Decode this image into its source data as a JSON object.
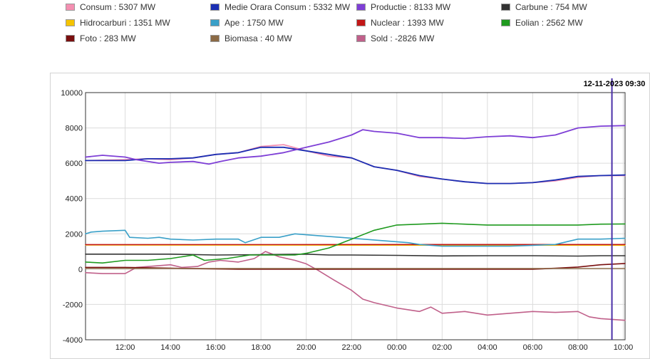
{
  "legend": [
    {
      "label": "Consum : 5307 MW",
      "color": "#f48fb1"
    },
    {
      "label": "Medie Orara Consum : 5332 MW",
      "color": "#1b2fb3"
    },
    {
      "label": "Productie : 8133 MW",
      "color": "#7e3fd6"
    },
    {
      "label": "Carbune : 754 MW",
      "color": "#333333"
    },
    {
      "label": "Hidrocarburi : 1351 MW",
      "color": "#f5c400"
    },
    {
      "label": "Ape : 1750 MW",
      "color": "#3aa0c8"
    },
    {
      "label": "Nuclear : 1393 MW",
      "color": "#c21717"
    },
    {
      "label": "Eolian : 2562 MW",
      "color": "#1f9a1f"
    },
    {
      "label": "Foto : 283 MW",
      "color": "#7a0f0f"
    },
    {
      "label": "Biomasa : 40 MW",
      "color": "#8b6a45"
    },
    {
      "label": "Sold : -2826 MW",
      "color": "#c0608a"
    }
  ],
  "timestamp": "12-11-2023 09:30",
  "chart_data": {
    "type": "line",
    "x_unit": "hours since 12:00 (12-11-2023)",
    "xlim": [
      -1.75,
      22.08
    ],
    "ylim": [
      -4000,
      10000
    ],
    "yticks": [
      -4000,
      -2000,
      0,
      2000,
      4000,
      6000,
      8000,
      10000
    ],
    "ytick_labels": [
      "-4000",
      "-2000",
      "0",
      "2000",
      "4000",
      "6000",
      "8000",
      "10000"
    ],
    "xticks": [
      0,
      2,
      4,
      6,
      8,
      10,
      12,
      14,
      16,
      18,
      20,
      22
    ],
    "xtick_labels": [
      "12:00",
      "14:00",
      "16:00",
      "18:00",
      "20:00",
      "22:00",
      "00:00",
      "02:00",
      "04:00",
      "06:00",
      "08:00",
      "10:00"
    ],
    "marker_x": 21.5,
    "grid": true,
    "series": [
      {
        "name": "Sold",
        "color": "#c0608a",
        "width": 1.6,
        "points": [
          [
            -1.75,
            -200
          ],
          [
            -1,
            -250
          ],
          [
            0,
            -250
          ],
          [
            0.5,
            100
          ],
          [
            1.5,
            200
          ],
          [
            2,
            250
          ],
          [
            2.5,
            100
          ],
          [
            3.2,
            150
          ],
          [
            3.7,
            400
          ],
          [
            4.2,
            500
          ],
          [
            5,
            400
          ],
          [
            5.7,
            600
          ],
          [
            6.2,
            1000
          ],
          [
            6.8,
            700
          ],
          [
            7.5,
            500
          ],
          [
            8,
            300
          ],
          [
            8.5,
            -50
          ],
          [
            9.2,
            -600
          ],
          [
            10,
            -1200
          ],
          [
            10.5,
            -1700
          ],
          [
            11,
            -1900
          ],
          [
            12,
            -2200
          ],
          [
            13,
            -2400
          ],
          [
            13.5,
            -2150
          ],
          [
            14,
            -2500
          ],
          [
            15,
            -2400
          ],
          [
            16,
            -2600
          ],
          [
            17,
            -2500
          ],
          [
            18,
            -2400
          ],
          [
            19,
            -2450
          ],
          [
            20,
            -2400
          ],
          [
            20.5,
            -2700
          ],
          [
            21,
            -2800
          ],
          [
            22.08,
            -2900
          ]
        ]
      },
      {
        "name": "Foto",
        "color": "#7a0f0f",
        "width": 1.6,
        "points": [
          [
            -1.75,
            100
          ],
          [
            0,
            100
          ],
          [
            1,
            80
          ],
          [
            3,
            30
          ],
          [
            5,
            0
          ],
          [
            18,
            0
          ],
          [
            19,
            50
          ],
          [
            20,
            120
          ],
          [
            21,
            250
          ],
          [
            22.08,
            320
          ]
        ]
      },
      {
        "name": "Biomasa",
        "color": "#8b6a45",
        "width": 1.4,
        "points": [
          [
            -1.75,
            40
          ],
          [
            22.08,
            40
          ]
        ]
      },
      {
        "name": "Hidrocarburi",
        "color": "#f5c400",
        "width": 1.4,
        "points": [
          [
            -1.75,
            1360
          ],
          [
            22.08,
            1350
          ]
        ]
      },
      {
        "name": "Nuclear",
        "color": "#c21717",
        "width": 1.6,
        "points": [
          [
            -1.75,
            1390
          ],
          [
            22.08,
            1393
          ]
        ]
      },
      {
        "name": "Carbune",
        "color": "#333333",
        "width": 1.6,
        "points": [
          [
            -1.75,
            850
          ],
          [
            2,
            850
          ],
          [
            4,
            800
          ],
          [
            6,
            820
          ],
          [
            8,
            850
          ],
          [
            9,
            800
          ],
          [
            10,
            800
          ],
          [
            12,
            780
          ],
          [
            14,
            750
          ],
          [
            16,
            760
          ],
          [
            18,
            760
          ],
          [
            20,
            740
          ],
          [
            21,
            760
          ],
          [
            22.08,
            760
          ]
        ]
      },
      {
        "name": "Ape",
        "color": "#3aa0c8",
        "width": 1.6,
        "points": [
          [
            -1.75,
            2000
          ],
          [
            -1.5,
            2100
          ],
          [
            -1,
            2150
          ],
          [
            0,
            2200
          ],
          [
            0.2,
            1800
          ],
          [
            1,
            1750
          ],
          [
            1.5,
            1800
          ],
          [
            2,
            1700
          ],
          [
            3,
            1650
          ],
          [
            4,
            1700
          ],
          [
            5,
            1700
          ],
          [
            5.3,
            1500
          ],
          [
            6,
            1800
          ],
          [
            6.8,
            1800
          ],
          [
            7.5,
            2000
          ],
          [
            8.5,
            1900
          ],
          [
            9.5,
            1800
          ],
          [
            10.5,
            1700
          ],
          [
            11.5,
            1600
          ],
          [
            12.5,
            1500
          ],
          [
            13,
            1400
          ],
          [
            14,
            1300
          ],
          [
            15,
            1300
          ],
          [
            16,
            1300
          ],
          [
            17,
            1300
          ],
          [
            18,
            1350
          ],
          [
            19,
            1400
          ],
          [
            20,
            1700
          ],
          [
            21,
            1700
          ],
          [
            22.08,
            1750
          ]
        ]
      },
      {
        "name": "Eolian",
        "color": "#1f9a1f",
        "width": 1.6,
        "points": [
          [
            -1.75,
            400
          ],
          [
            -1,
            350
          ],
          [
            0,
            500
          ],
          [
            1,
            500
          ],
          [
            2,
            600
          ],
          [
            3,
            800
          ],
          [
            3.5,
            500
          ],
          [
            4.5,
            600
          ],
          [
            5.5,
            800
          ],
          [
            6.5,
            800
          ],
          [
            7.5,
            800
          ],
          [
            8,
            900
          ],
          [
            9,
            1200
          ],
          [
            10,
            1700
          ],
          [
            11,
            2200
          ],
          [
            12,
            2500
          ],
          [
            13,
            2550
          ],
          [
            14,
            2600
          ],
          [
            15,
            2550
          ],
          [
            16,
            2500
          ],
          [
            17,
            2500
          ],
          [
            18,
            2500
          ],
          [
            19,
            2500
          ],
          [
            20,
            2500
          ],
          [
            21,
            2550
          ],
          [
            22.08,
            2560
          ]
        ]
      },
      {
        "name": "Consum",
        "color": "#f48fb1",
        "width": 1.8,
        "points": [
          [
            -1.75,
            6150
          ],
          [
            0,
            6200
          ],
          [
            1,
            6250
          ],
          [
            2,
            6200
          ],
          [
            3,
            6300
          ],
          [
            4,
            6500
          ],
          [
            5,
            6600
          ],
          [
            6,
            6950
          ],
          [
            7,
            7050
          ],
          [
            8,
            6700
          ],
          [
            9,
            6400
          ],
          [
            10,
            6300
          ],
          [
            11,
            5800
          ],
          [
            12,
            5600
          ],
          [
            13,
            5250
          ],
          [
            14,
            5100
          ],
          [
            15,
            4950
          ],
          [
            16,
            4850
          ],
          [
            17,
            4850
          ],
          [
            18,
            4900
          ],
          [
            19,
            5000
          ],
          [
            20,
            5200
          ],
          [
            21,
            5300
          ],
          [
            22.08,
            5300
          ]
        ]
      },
      {
        "name": "Medie Orara Consum",
        "color": "#1b2fb3",
        "width": 1.8,
        "points": [
          [
            -1.75,
            6150
          ],
          [
            0,
            6150
          ],
          [
            1,
            6250
          ],
          [
            2,
            6250
          ],
          [
            3,
            6300
          ],
          [
            4,
            6500
          ],
          [
            5,
            6600
          ],
          [
            6,
            6900
          ],
          [
            7,
            6900
          ],
          [
            8,
            6700
          ],
          [
            9,
            6500
          ],
          [
            10,
            6300
          ],
          [
            11,
            5800
          ],
          [
            12,
            5600
          ],
          [
            13,
            5300
          ],
          [
            14,
            5100
          ],
          [
            15,
            4950
          ],
          [
            16,
            4850
          ],
          [
            17,
            4850
          ],
          [
            18,
            4900
          ],
          [
            19,
            5050
          ],
          [
            20,
            5250
          ],
          [
            21,
            5300
          ],
          [
            22.08,
            5330
          ]
        ]
      },
      {
        "name": "Productie",
        "color": "#7e3fd6",
        "width": 1.8,
        "points": [
          [
            -1.75,
            6350
          ],
          [
            -1,
            6450
          ],
          [
            0,
            6350
          ],
          [
            0.5,
            6200
          ],
          [
            1.5,
            6000
          ],
          [
            2,
            6050
          ],
          [
            3,
            6100
          ],
          [
            3.7,
            5950
          ],
          [
            4.2,
            6100
          ],
          [
            5,
            6300
          ],
          [
            6,
            6400
          ],
          [
            7,
            6600
          ],
          [
            8,
            6900
          ],
          [
            9,
            7200
          ],
          [
            10,
            7600
          ],
          [
            10.5,
            7900
          ],
          [
            11,
            7800
          ],
          [
            12,
            7700
          ],
          [
            13,
            7450
          ],
          [
            14,
            7450
          ],
          [
            15,
            7400
          ],
          [
            16,
            7500
          ],
          [
            17,
            7550
          ],
          [
            18,
            7450
          ],
          [
            19,
            7600
          ],
          [
            20,
            8000
          ],
          [
            21,
            8100
          ],
          [
            22.08,
            8133
          ]
        ]
      }
    ]
  }
}
